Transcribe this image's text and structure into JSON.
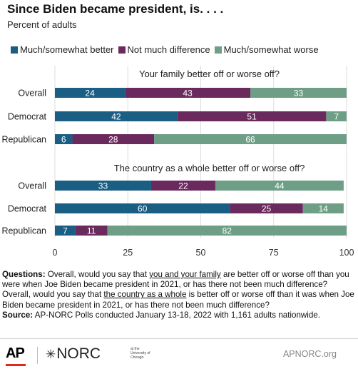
{
  "title": "Since Biden became president, is. . . .",
  "subtitle": "Percent of adults",
  "legend": [
    {
      "label": "Much/somewhat better",
      "color": "#1b5e83"
    },
    {
      "label": "Not much difference",
      "color": "#6b2a5e"
    },
    {
      "label": "Much/somewhat worse",
      "color": "#6e9e86"
    }
  ],
  "chart_data": {
    "type": "bar",
    "orientation": "horizontal",
    "stacked": true,
    "xlim": [
      0,
      100
    ],
    "xticks": [
      0,
      25,
      50,
      75,
      100
    ],
    "grid": true,
    "legend_position": "top",
    "series_names": [
      "Much/somewhat better",
      "Not much difference",
      "Much/somewhat worse"
    ],
    "colors": [
      "#1b5e83",
      "#6b2a5e",
      "#6e9e86"
    ],
    "panels": [
      {
        "title": "Your family better off or worse off?",
        "categories": [
          "Overall",
          "Democrat",
          "Republican"
        ],
        "values": [
          [
            24,
            43,
            33
          ],
          [
            42,
            51,
            7
          ],
          [
            6,
            28,
            66
          ]
        ]
      },
      {
        "title": "The country as a whole better off or worse off?",
        "categories": [
          "Overall",
          "Democrat",
          "Republican"
        ],
        "values": [
          [
            33,
            22,
            44
          ],
          [
            60,
            25,
            14
          ],
          [
            7,
            11,
            82
          ]
        ]
      }
    ]
  },
  "notes": {
    "q_label": "Questions:",
    "q1_a": " Overall, would you say that ",
    "q1_u": "you and your family",
    "q1_b": " are better off or worse off than you were when Joe Biden became president in 2021, or has there not been much difference?",
    "q2_a": "Overall, would you say that ",
    "q2_u": "the country as a whole",
    "q2_b": "  is better off or worse off than it was when Joe Biden became president in 2021, or has there not been much difference?",
    "source_label": "Source:",
    "source_text": " AP-NORC Polls conducted January 13-18, 2022 with 1,161 adults nationwide."
  },
  "footer": {
    "ap": "AP",
    "norc": "NORC",
    "norc_star": "✳",
    "norc_tag": "at the University of Chicago",
    "url": "APNORC.org"
  }
}
